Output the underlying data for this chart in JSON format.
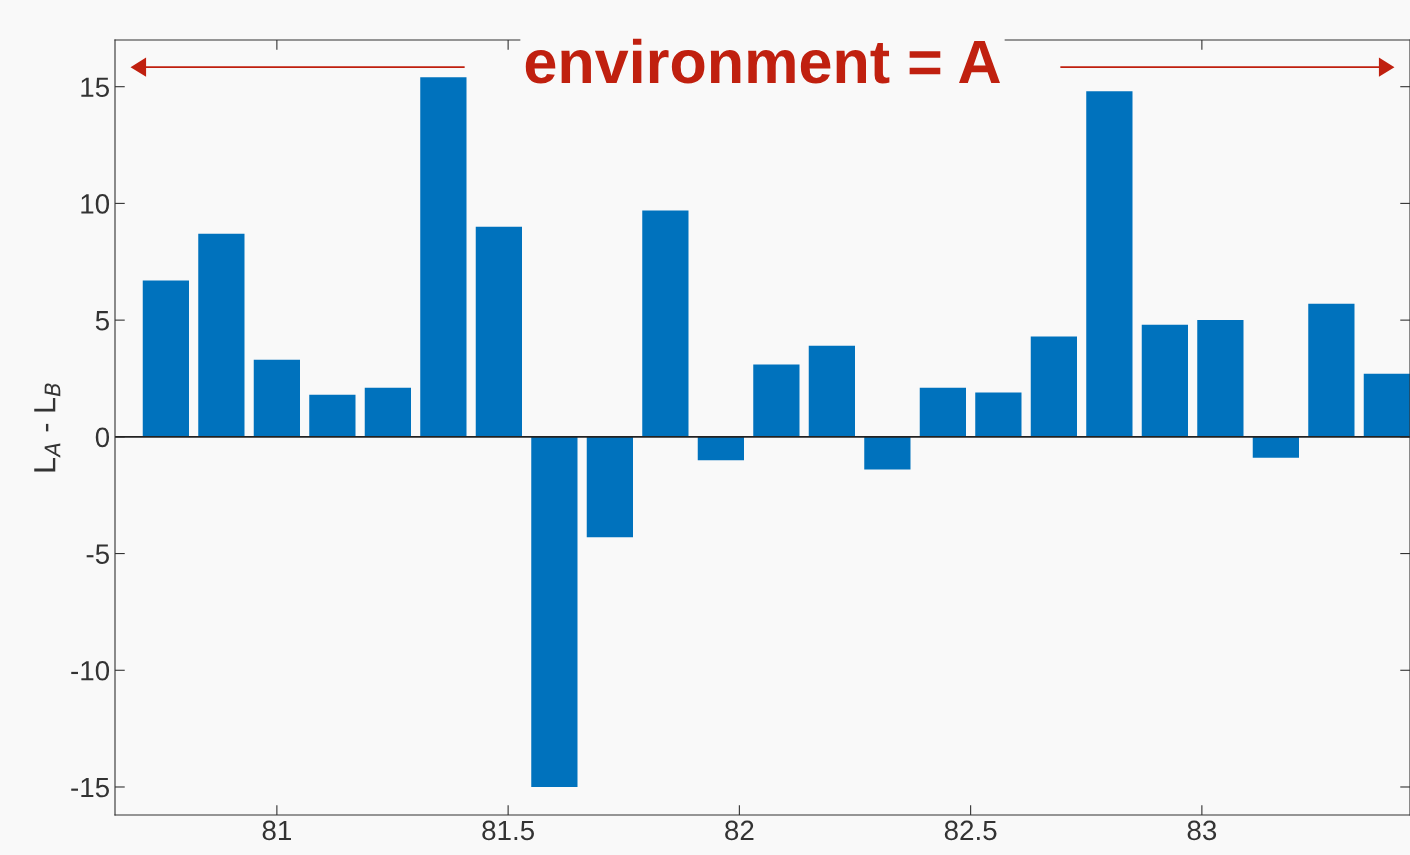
{
  "chart_data": {
    "type": "bar",
    "ylabel": "L$_{A}$ - L$_{B}$",
    "color": "#0072bd",
    "x": [
      80.76,
      80.88,
      81.0,
      81.12,
      81.24,
      81.36,
      81.48,
      81.6,
      81.72,
      81.84,
      81.96,
      82.08,
      82.2,
      82.32,
      82.44,
      82.56,
      82.68,
      82.8,
      82.92,
      83.04,
      83.16,
      83.28,
      83.4
    ],
    "values": [
      6.7,
      8.7,
      3.3,
      1.8,
      2.1,
      15.4,
      9.0,
      -15.0,
      -4.3,
      9.7,
      -1.0,
      3.1,
      3.9,
      -1.4,
      2.1,
      1.9,
      4.3,
      14.8,
      4.8,
      5.0,
      -0.9,
      5.7,
      2.7
    ],
    "xlim": [
      80.65,
      83.45
    ],
    "ylim": [
      -16.2,
      17.0
    ],
    "xticks": [
      81,
      81.5,
      82,
      82.5,
      83
    ],
    "yticks": [
      -15,
      -10,
      -5,
      0,
      5,
      10,
      15
    ],
    "annotations": [
      "environment = A"
    ],
    "ref_lines": [
      {
        "axis": "y",
        "value": 0,
        "color": "#222222"
      }
    ]
  }
}
